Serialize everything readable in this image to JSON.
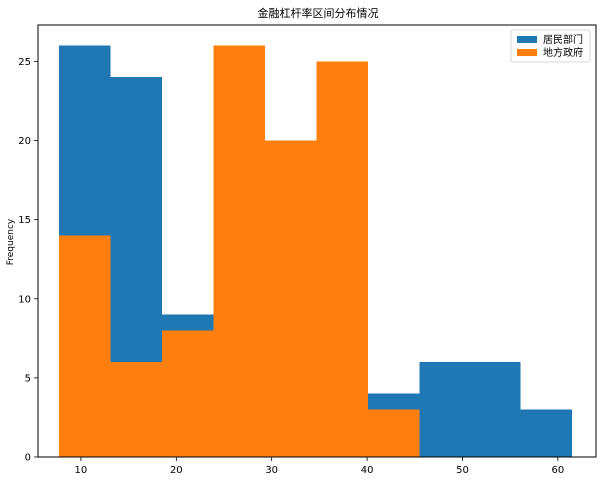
{
  "chart_data": {
    "type": "bar",
    "title": "金融杠杆率区间分布情况",
    "xlabel": "",
    "ylabel": "Frequency",
    "xlim": [
      5.5,
      64
    ],
    "ylim": [
      0,
      27.3
    ],
    "xticks": [
      10,
      20,
      30,
      40,
      50,
      60
    ],
    "yticks": [
      0,
      5,
      10,
      15,
      20,
      25
    ],
    "grid": false,
    "legend_position": "top-right",
    "series": [
      {
        "name": "居民部门",
        "color": "#1f77b4",
        "bins": [
          {
            "x0": 7.7,
            "x1": 13.1,
            "value": 26
          },
          {
            "x0": 13.1,
            "x1": 18.5,
            "value": 24
          },
          {
            "x0": 18.5,
            "x1": 23.9,
            "value": 9
          },
          {
            "x0": 23.9,
            "x1": 29.3,
            "value": 0
          },
          {
            "x0": 29.3,
            "x1": 34.7,
            "value": 0
          },
          {
            "x0": 34.7,
            "x1": 40.1,
            "value": 0
          },
          {
            "x0": 40.1,
            "x1": 45.5,
            "value": 4
          },
          {
            "x0": 45.5,
            "x1": 50.9,
            "value": 6
          },
          {
            "x0": 50.9,
            "x1": 56.1,
            "value": 6
          },
          {
            "x0": 56.1,
            "x1": 61.5,
            "value": 3
          }
        ]
      },
      {
        "name": "地方政府",
        "color": "#ff7f0e",
        "bins": [
          {
            "x0": 7.7,
            "x1": 13.1,
            "value": 14
          },
          {
            "x0": 13.1,
            "x1": 18.5,
            "value": 6
          },
          {
            "x0": 18.5,
            "x1": 23.9,
            "value": 8
          },
          {
            "x0": 23.9,
            "x1": 29.3,
            "value": 26
          },
          {
            "x0": 29.3,
            "x1": 34.7,
            "value": 20
          },
          {
            "x0": 34.7,
            "x1": 40.1,
            "value": 25
          },
          {
            "x0": 40.1,
            "x1": 45.5,
            "value": 3
          }
        ]
      }
    ]
  }
}
